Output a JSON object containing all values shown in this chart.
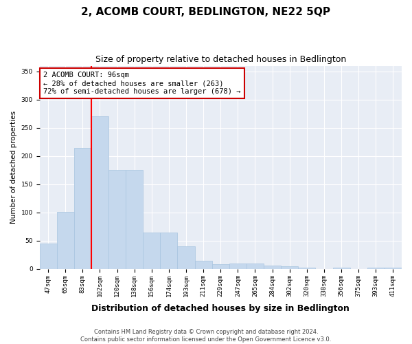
{
  "title": "2, ACOMB COURT, BEDLINGTON, NE22 5QP",
  "subtitle": "Size of property relative to detached houses in Bedlington",
  "xlabel": "Distribution of detached houses by size in Bedlington",
  "ylabel": "Number of detached properties",
  "categories": [
    "47sqm",
    "65sqm",
    "83sqm",
    "102sqm",
    "120sqm",
    "138sqm",
    "156sqm",
    "174sqm",
    "193sqm",
    "211sqm",
    "229sqm",
    "247sqm",
    "265sqm",
    "284sqm",
    "302sqm",
    "320sqm",
    "338sqm",
    "356sqm",
    "375sqm",
    "393sqm",
    "411sqm"
  ],
  "values": [
    45,
    101,
    215,
    270,
    176,
    175,
    65,
    65,
    40,
    15,
    8,
    10,
    10,
    6,
    5,
    3,
    0,
    3,
    0,
    3,
    2
  ],
  "bar_color": "#c5d8ed",
  "bar_edgecolor": "#a8c4e0",
  "annotation_text": "2 ACOMB COURT: 96sqm\n← 28% of detached houses are smaller (263)\n72% of semi-detached houses are larger (678) →",
  "annotation_box_color": "#ffffff",
  "annotation_box_edgecolor": "#cc0000",
  "ylim": [
    0,
    360
  ],
  "yticks": [
    0,
    50,
    100,
    150,
    200,
    250,
    300,
    350
  ],
  "background_color": "#e8edf5",
  "fig_background_color": "#ffffff",
  "footer_line1": "Contains HM Land Registry data © Crown copyright and database right 2024.",
  "footer_line2": "Contains public sector information licensed under the Open Government Licence v3.0.",
  "title_fontsize": 11,
  "subtitle_fontsize": 9,
  "xlabel_fontsize": 9,
  "ylabel_fontsize": 7.5,
  "tick_fontsize": 6.5,
  "annotation_fontsize": 7.5,
  "footer_fontsize": 6
}
